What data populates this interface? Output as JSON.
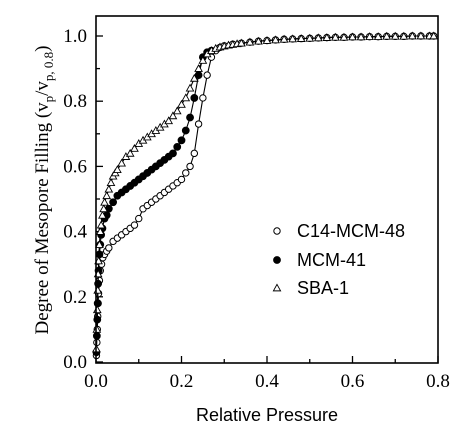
{
  "chart_data": {
    "type": "scatter",
    "title": "",
    "xlabel": "Relative Pressure",
    "ylabel": "Degree of Mesopore Filling (v",
    "ylabel_sub1": "p",
    "ylabel_mid": "/v",
    "ylabel_sub2": "p, 0.8",
    "ylabel_end": ")",
    "xlim": [
      0,
      0.8
    ],
    "ylim": [
      0,
      1.05
    ],
    "x_ticks": [
      "0.0",
      "0.2",
      "0.4",
      "0.6",
      "0.8"
    ],
    "y_ticks": [
      "0.0",
      "0.2",
      "0.4",
      "0.6",
      "0.8",
      "1.0"
    ],
    "legend_position": "center-right",
    "grid": false,
    "series": [
      {
        "name": "C14-MCM-48",
        "marker": "circle-open",
        "x": [
          0.001,
          0.002,
          0.003,
          0.004,
          0.005,
          0.006,
          0.008,
          0.01,
          0.013,
          0.016,
          0.02,
          0.025,
          0.03,
          0.04,
          0.05,
          0.06,
          0.07,
          0.08,
          0.09,
          0.1,
          0.11,
          0.12,
          0.13,
          0.14,
          0.15,
          0.16,
          0.17,
          0.18,
          0.19,
          0.2,
          0.21,
          0.22,
          0.23,
          0.24,
          0.25,
          0.26,
          0.27,
          0.28,
          0.29,
          0.3,
          0.32,
          0.34,
          0.36,
          0.38,
          0.4,
          0.42,
          0.44,
          0.46,
          0.48,
          0.5,
          0.52,
          0.54,
          0.56,
          0.58,
          0.6,
          0.62,
          0.64,
          0.66,
          0.68,
          0.7,
          0.72,
          0.74,
          0.76,
          0.78,
          0.79
        ],
        "y": [
          0.02,
          0.06,
          0.1,
          0.14,
          0.18,
          0.21,
          0.25,
          0.28,
          0.3,
          0.32,
          0.33,
          0.34,
          0.35,
          0.37,
          0.38,
          0.39,
          0.4,
          0.41,
          0.42,
          0.44,
          0.47,
          0.48,
          0.49,
          0.5,
          0.51,
          0.52,
          0.53,
          0.54,
          0.55,
          0.56,
          0.58,
          0.6,
          0.64,
          0.73,
          0.81,
          0.88,
          0.935,
          0.955,
          0.965,
          0.97,
          0.975,
          0.978,
          0.981,
          0.984,
          0.986,
          0.988,
          0.99,
          0.991,
          0.992,
          0.993,
          0.994,
          0.995,
          0.996,
          0.996,
          0.997,
          0.997,
          0.998,
          0.998,
          0.999,
          0.999,
          0.999,
          1.0,
          1.0,
          1.0,
          1.0
        ]
      },
      {
        "name": "MCM-41",
        "marker": "circle-filled",
        "x": [
          0.001,
          0.002,
          0.003,
          0.004,
          0.005,
          0.006,
          0.008,
          0.01,
          0.012,
          0.015,
          0.02,
          0.025,
          0.03,
          0.04,
          0.05,
          0.06,
          0.07,
          0.08,
          0.09,
          0.1,
          0.11,
          0.12,
          0.13,
          0.14,
          0.15,
          0.16,
          0.17,
          0.18,
          0.19,
          0.2,
          0.21,
          0.22,
          0.23,
          0.24,
          0.25,
          0.26,
          0.27
        ],
        "y": [
          0.03,
          0.08,
          0.13,
          0.18,
          0.24,
          0.28,
          0.33,
          0.36,
          0.39,
          0.41,
          0.44,
          0.45,
          0.47,
          0.49,
          0.51,
          0.52,
          0.53,
          0.54,
          0.55,
          0.56,
          0.57,
          0.58,
          0.59,
          0.6,
          0.61,
          0.62,
          0.63,
          0.64,
          0.66,
          0.68,
          0.71,
          0.75,
          0.81,
          0.88,
          0.935,
          0.95,
          0.955
        ]
      },
      {
        "name": "SBA-1",
        "marker": "triangle-open",
        "x": [
          0.001,
          0.002,
          0.003,
          0.004,
          0.005,
          0.006,
          0.008,
          0.01,
          0.012,
          0.015,
          0.018,
          0.02,
          0.025,
          0.03,
          0.035,
          0.04,
          0.045,
          0.05,
          0.06,
          0.07,
          0.08,
          0.09,
          0.1,
          0.11,
          0.12,
          0.13,
          0.14,
          0.15,
          0.16,
          0.17,
          0.18,
          0.19,
          0.2,
          0.21,
          0.22,
          0.23,
          0.24,
          0.25,
          0.26,
          0.27,
          0.28,
          0.29,
          0.3,
          0.31,
          0.32,
          0.33,
          0.34,
          0.36,
          0.38,
          0.4,
          0.42,
          0.44,
          0.46,
          0.48,
          0.5,
          0.52,
          0.54,
          0.56,
          0.58,
          0.6,
          0.62,
          0.64,
          0.66,
          0.68,
          0.7,
          0.72,
          0.74,
          0.76,
          0.78,
          0.79
        ],
        "y": [
          0.04,
          0.1,
          0.16,
          0.22,
          0.27,
          0.31,
          0.36,
          0.4,
          0.42,
          0.45,
          0.47,
          0.49,
          0.51,
          0.53,
          0.55,
          0.57,
          0.58,
          0.59,
          0.61,
          0.63,
          0.64,
          0.655,
          0.67,
          0.68,
          0.69,
          0.7,
          0.71,
          0.72,
          0.73,
          0.74,
          0.755,
          0.77,
          0.79,
          0.81,
          0.84,
          0.87,
          0.9,
          0.925,
          0.945,
          0.955,
          0.962,
          0.966,
          0.969,
          0.972,
          0.974,
          0.976,
          0.978,
          0.981,
          0.984,
          0.986,
          0.988,
          0.99,
          0.991,
          0.992,
          0.993,
          0.994,
          0.995,
          0.996,
          0.996,
          0.997,
          0.997,
          0.998,
          0.998,
          0.999,
          0.999,
          0.999,
          1.0,
          1.0,
          1.0,
          1.0
        ]
      }
    ]
  }
}
